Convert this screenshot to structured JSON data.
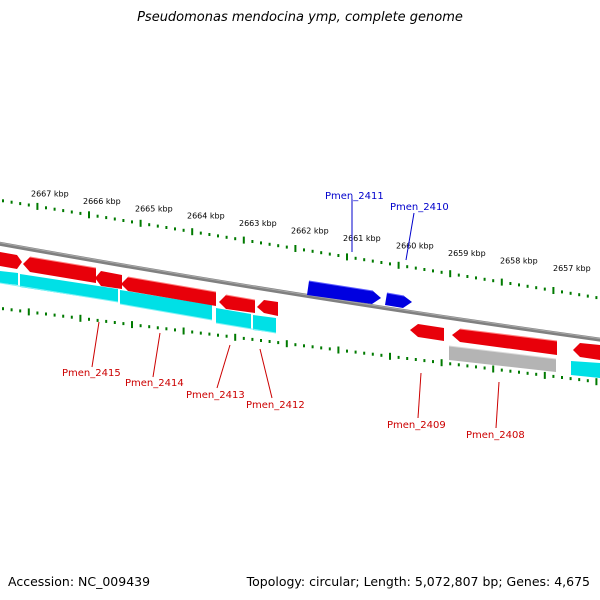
{
  "title": "Pseudomonas mendocina ymp, complete genome",
  "footer": {
    "accession": "Accession: NC_009439",
    "summary": "Topology: circular; Length: 5,072,807 bp; Genes: 4,675"
  },
  "colors": {
    "forward_gene": "#e8000a",
    "reverse_gene": "#e8000a",
    "highlight_gene": "#0000e0",
    "cds_track": "#00e0e6",
    "pseudo_track": "#b4b4b4",
    "backbone": "#808080",
    "tick": "#007a00",
    "label_red": "#cc0000",
    "label_blue": "#0000cc"
  },
  "kbp_labels": [
    "2667 kbp",
    "2666 kbp",
    "2665 kbp",
    "2664 kbp",
    "2663 kbp",
    "2662 kbp",
    "2661 kbp",
    "2660 kbp",
    "2659 kbp",
    "2658 kbp",
    "2657 kbp"
  ],
  "genes": [
    {
      "name": "Pmen_2415",
      "color_key": "label_red"
    },
    {
      "name": "Pmen_2414",
      "color_key": "label_red"
    },
    {
      "name": "Pmen_2413",
      "color_key": "label_red"
    },
    {
      "name": "Pmen_2412",
      "color_key": "label_red"
    },
    {
      "name": "Pmen_2411",
      "color_key": "label_blue"
    },
    {
      "name": "Pmen_2410",
      "color_key": "label_blue"
    },
    {
      "name": "Pmen_2409",
      "color_key": "label_red"
    },
    {
      "name": "Pmen_2408",
      "color_key": "label_red"
    }
  ]
}
